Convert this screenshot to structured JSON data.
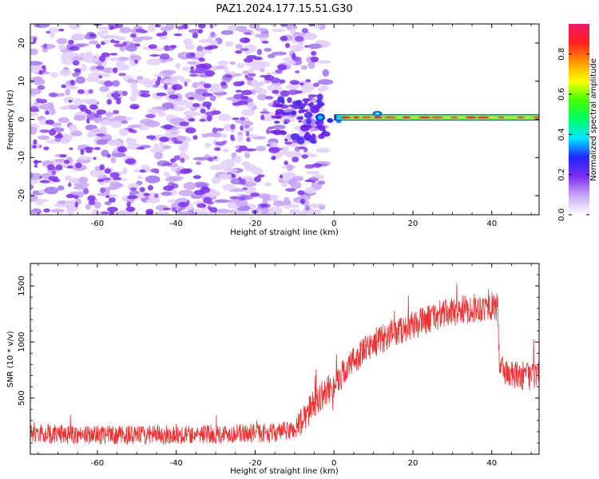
{
  "title": "PAZ1.2024.177.15.51.G30",
  "chart_data": [
    {
      "type": "heatmap",
      "xlabel": "Height of straight line (km)",
      "ylabel": "Frequency (Hz)",
      "xlim": [
        -77,
        52
      ],
      "ylim": [
        -25,
        25
      ],
      "x_ticks": [
        -60,
        -40,
        -20,
        0,
        20,
        40
      ],
      "y_ticks": [
        -20,
        -10,
        0,
        10,
        20
      ],
      "grid": false,
      "noise_region_x": [
        -77,
        0
      ],
      "signal_line": {
        "frequency": 0.5,
        "x_start": 0,
        "x_end": 52
      },
      "colorbar": {
        "label": "Normalized spectral amplitude",
        "range": [
          0,
          0.95
        ],
        "ticks": [
          0.0,
          0.2,
          0.4,
          0.6,
          0.8
        ],
        "colormap": [
          "#ffffff",
          "#c9a9f5",
          "#7b2ff0",
          "#2222ff",
          "#00e5ff",
          "#00ff66",
          "#44ff00",
          "#ffff00",
          "#ff9900",
          "#ff1f1f",
          "#f01869"
        ]
      }
    },
    {
      "type": "line",
      "xlabel": "Height of straight line (km)",
      "ylabel": "SNR (10 * v/v)",
      "xlim": [
        -77,
        52
      ],
      "ylim": [
        0,
        1700
      ],
      "x_ticks": [
        -60,
        -40,
        -20,
        0,
        20,
        40
      ],
      "y_ticks": [
        500,
        1000,
        1500
      ],
      "grid": false,
      "color": "#ee3333",
      "series": [
        {
          "x": [
            -77,
            -70,
            -60,
            -50,
            -40,
            -30,
            -20,
            -15,
            -10,
            -8,
            -5,
            0,
            5,
            10,
            15,
            20,
            25,
            30,
            35,
            40,
            41.5,
            42,
            45,
            50,
            52
          ],
          "values": [
            180,
            180,
            170,
            170,
            175,
            180,
            190,
            190,
            220,
            300,
            460,
            620,
            840,
            990,
            1080,
            1150,
            1220,
            1270,
            1300,
            1320,
            1300,
            780,
            700,
            700,
            700
          ]
        }
      ]
    }
  ]
}
